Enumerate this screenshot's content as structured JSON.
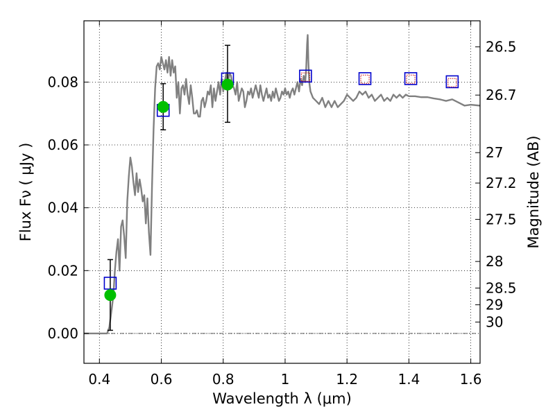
{
  "chart_data": {
    "type": "scatter",
    "title": "",
    "xlabel": "Wavelength  λ (μm)",
    "ylabel": "Flux  Fν  ( μJy )",
    "y2label": "Magnitude (AB)",
    "xlim": [
      0.35,
      1.63
    ],
    "ylim": [
      -0.0095,
      0.0995
    ],
    "grid": true,
    "x_ticks": [
      0.4,
      0.6,
      0.8,
      1.0,
      1.2,
      1.4,
      1.6
    ],
    "x_tick_labels": [
      "0.4",
      "0.6",
      "0.8",
      "1",
      "1.2",
      "1.4",
      "1.6"
    ],
    "y_ticks": [
      0.0,
      0.02,
      0.04,
      0.06,
      0.08
    ],
    "y_tick_labels": [
      "0.00",
      "0.02",
      "0.04",
      "0.06",
      "0.08"
    ],
    "y2_ticks": [
      {
        "label": "26.5",
        "mag": 26.5
      },
      {
        "label": "26.7",
        "mag": 26.7
      },
      {
        "label": "27",
        "mag": 27.0
      },
      {
        "label": "27.2",
        "mag": 27.2
      },
      {
        "label": "27.5",
        "mag": 27.5
      },
      {
        "label": "28",
        "mag": 28.0
      },
      {
        "label": "28.5",
        "mag": 28.5
      },
      {
        "label": "29",
        "mag": 29.0
      },
      {
        "label": "30",
        "mag": 30.0
      }
    ],
    "series": [
      {
        "type": "line",
        "color": "#808080",
        "points": [
          [
            0.35,
            0.0
          ],
          [
            0.425,
            0.0
          ],
          [
            0.432,
            0.002
          ],
          [
            0.44,
            0.008
          ],
          [
            0.445,
            0.012
          ],
          [
            0.45,
            0.02
          ],
          [
            0.455,
            0.026
          ],
          [
            0.46,
            0.03
          ],
          [
            0.465,
            0.02
          ],
          [
            0.47,
            0.034
          ],
          [
            0.475,
            0.036
          ],
          [
            0.48,
            0.031
          ],
          [
            0.485,
            0.024
          ],
          [
            0.49,
            0.042
          ],
          [
            0.495,
            0.05
          ],
          [
            0.5,
            0.056
          ],
          [
            0.505,
            0.053
          ],
          [
            0.51,
            0.048
          ],
          [
            0.515,
            0.044
          ],
          [
            0.52,
            0.051
          ],
          [
            0.525,
            0.045
          ],
          [
            0.53,
            0.049
          ],
          [
            0.535,
            0.046
          ],
          [
            0.54,
            0.042
          ],
          [
            0.545,
            0.044
          ],
          [
            0.55,
            0.035
          ],
          [
            0.555,
            0.043
          ],
          [
            0.56,
            0.032
          ],
          [
            0.565,
            0.025
          ],
          [
            0.57,
            0.047
          ],
          [
            0.575,
            0.065
          ],
          [
            0.58,
            0.078
          ],
          [
            0.585,
            0.085
          ],
          [
            0.59,
            0.086
          ],
          [
            0.595,
            0.084
          ],
          [
            0.6,
            0.088
          ],
          [
            0.605,
            0.086
          ],
          [
            0.61,
            0.084
          ],
          [
            0.615,
            0.087
          ],
          [
            0.62,
            0.083
          ],
          [
            0.625,
            0.088
          ],
          [
            0.63,
            0.082
          ],
          [
            0.635,
            0.087
          ],
          [
            0.64,
            0.083
          ],
          [
            0.645,
            0.085
          ],
          [
            0.65,
            0.075
          ],
          [
            0.655,
            0.08
          ],
          [
            0.66,
            0.07
          ],
          [
            0.665,
            0.078
          ],
          [
            0.67,
            0.079
          ],
          [
            0.675,
            0.076
          ],
          [
            0.68,
            0.081
          ],
          [
            0.685,
            0.076
          ],
          [
            0.69,
            0.073
          ],
          [
            0.695,
            0.079
          ],
          [
            0.7,
            0.075
          ],
          [
            0.705,
            0.07
          ],
          [
            0.71,
            0.07
          ],
          [
            0.715,
            0.071
          ],
          [
            0.72,
            0.069
          ],
          [
            0.725,
            0.069
          ],
          [
            0.73,
            0.074
          ],
          [
            0.735,
            0.075
          ],
          [
            0.74,
            0.072
          ],
          [
            0.745,
            0.074
          ],
          [
            0.75,
            0.077
          ],
          [
            0.755,
            0.076
          ],
          [
            0.76,
            0.079
          ],
          [
            0.765,
            0.072
          ],
          [
            0.77,
            0.078
          ],
          [
            0.775,
            0.074
          ],
          [
            0.78,
            0.077
          ],
          [
            0.785,
            0.08
          ],
          [
            0.79,
            0.076
          ],
          [
            0.795,
            0.081
          ],
          [
            0.8,
            0.077
          ],
          [
            0.805,
            0.08
          ],
          [
            0.81,
            0.083
          ],
          [
            0.815,
            0.079
          ],
          [
            0.82,
            0.083
          ],
          [
            0.825,
            0.082
          ],
          [
            0.83,
            0.079
          ],
          [
            0.835,
            0.078
          ],
          [
            0.84,
            0.076
          ],
          [
            0.845,
            0.08
          ],
          [
            0.85,
            0.074
          ],
          [
            0.855,
            0.076
          ],
          [
            0.86,
            0.078
          ],
          [
            0.865,
            0.077
          ],
          [
            0.87,
            0.072
          ],
          [
            0.875,
            0.074
          ],
          [
            0.88,
            0.077
          ],
          [
            0.885,
            0.076
          ],
          [
            0.89,
            0.078
          ],
          [
            0.895,
            0.075
          ],
          [
            0.9,
            0.077
          ],
          [
            0.905,
            0.079
          ],
          [
            0.91,
            0.077
          ],
          [
            0.915,
            0.075
          ],
          [
            0.92,
            0.079
          ],
          [
            0.925,
            0.076
          ],
          [
            0.93,
            0.074
          ],
          [
            0.935,
            0.076
          ],
          [
            0.94,
            0.078
          ],
          [
            0.945,
            0.075
          ],
          [
            0.95,
            0.076
          ],
          [
            0.955,
            0.074
          ],
          [
            0.96,
            0.077
          ],
          [
            0.965,
            0.075
          ],
          [
            0.97,
            0.078
          ],
          [
            0.975,
            0.076
          ],
          [
            0.98,
            0.074
          ],
          [
            0.985,
            0.075
          ],
          [
            0.99,
            0.077
          ],
          [
            0.995,
            0.076
          ],
          [
            1.0,
            0.078
          ],
          [
            1.005,
            0.076
          ],
          [
            1.01,
            0.077
          ],
          [
            1.015,
            0.075
          ],
          [
            1.02,
            0.077
          ],
          [
            1.025,
            0.078
          ],
          [
            1.03,
            0.076
          ],
          [
            1.035,
            0.078
          ],
          [
            1.04,
            0.08
          ],
          [
            1.045,
            0.077
          ],
          [
            1.05,
            0.081
          ],
          [
            1.055,
            0.079
          ],
          [
            1.06,
            0.082
          ],
          [
            1.065,
            0.08
          ],
          [
            1.068,
            0.084
          ],
          [
            1.071,
            0.092
          ],
          [
            1.073,
            0.095
          ],
          [
            1.075,
            0.087
          ],
          [
            1.078,
            0.08
          ],
          [
            1.082,
            0.077
          ],
          [
            1.09,
            0.075
          ],
          [
            1.1,
            0.074
          ],
          [
            1.11,
            0.073
          ],
          [
            1.12,
            0.075
          ],
          [
            1.13,
            0.072
          ],
          [
            1.14,
            0.074
          ],
          [
            1.15,
            0.072
          ],
          [
            1.16,
            0.074
          ],
          [
            1.17,
            0.072
          ],
          [
            1.18,
            0.073
          ],
          [
            1.19,
            0.074
          ],
          [
            1.2,
            0.076
          ],
          [
            1.21,
            0.075
          ],
          [
            1.22,
            0.074
          ],
          [
            1.23,
            0.075
          ],
          [
            1.24,
            0.077
          ],
          [
            1.25,
            0.076
          ],
          [
            1.26,
            0.077
          ],
          [
            1.27,
            0.075
          ],
          [
            1.28,
            0.076
          ],
          [
            1.29,
            0.074
          ],
          [
            1.3,
            0.075
          ],
          [
            1.31,
            0.076
          ],
          [
            1.32,
            0.074
          ],
          [
            1.33,
            0.075
          ],
          [
            1.34,
            0.074
          ],
          [
            1.35,
            0.076
          ],
          [
            1.36,
            0.075
          ],
          [
            1.37,
            0.076
          ],
          [
            1.38,
            0.075
          ],
          [
            1.39,
            0.076
          ],
          [
            1.4,
            0.0755
          ],
          [
            1.42,
            0.0755
          ],
          [
            1.44,
            0.0752
          ],
          [
            1.46,
            0.0752
          ],
          [
            1.48,
            0.0748
          ],
          [
            1.5,
            0.0745
          ],
          [
            1.52,
            0.074
          ],
          [
            1.54,
            0.0745
          ],
          [
            1.56,
            0.0735
          ],
          [
            1.58,
            0.0725
          ],
          [
            1.6,
            0.0728
          ],
          [
            1.63,
            0.0725
          ]
        ]
      },
      {
        "type": "scatter",
        "marker": "circle",
        "color": "#00c000",
        "points": [
          {
            "x": 0.435,
            "y": 0.0122,
            "yerr": [
              0.0112,
              0.0113
            ]
          },
          {
            "x": 0.606,
            "y": 0.0721,
            "yerr": [
              0.0073,
              0.0074
            ]
          },
          {
            "x": 0.814,
            "y": 0.0792,
            "yerr": [
              0.012,
              0.0125
            ]
          }
        ]
      },
      {
        "type": "scatter",
        "marker": "open-square",
        "color": "#0000cc",
        "points": [
          {
            "x": 0.435,
            "y": 0.016
          },
          {
            "x": 0.606,
            "y": 0.071
          },
          {
            "x": 0.814,
            "y": 0.081
          },
          {
            "x": 1.066,
            "y": 0.0819
          },
          {
            "x": 1.258,
            "y": 0.0811
          },
          {
            "x": 1.406,
            "y": 0.0811
          },
          {
            "x": 1.54,
            "y": 0.0801
          }
        ]
      },
      {
        "type": "scatter",
        "marker": "dotted-square",
        "color": "#cc0000",
        "points": [
          {
            "x": 1.066,
            "y": 0.0816
          },
          {
            "x": 1.258,
            "y": 0.0809
          },
          {
            "x": 1.406,
            "y": 0.0809
          },
          {
            "x": 1.54,
            "y": 0.0798
          }
        ]
      }
    ]
  }
}
